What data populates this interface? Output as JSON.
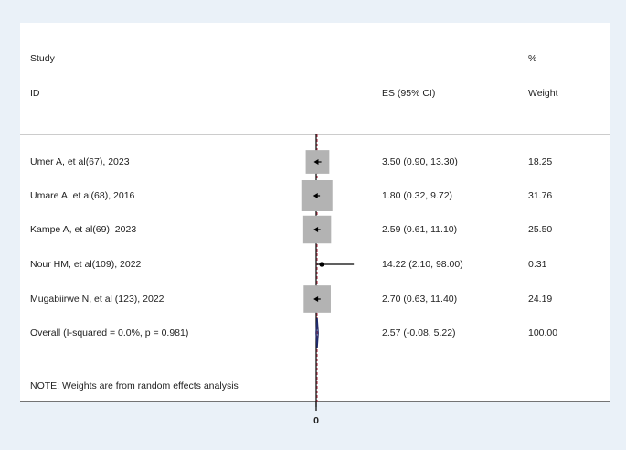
{
  "header": {
    "col1_top": "Study",
    "col1_bottom": "ID",
    "col2": "ES (95% CI)",
    "col3_top": "%",
    "col3_bottom": "Weight"
  },
  "rows": [
    {
      "study": "Umer A, et al(67), 2023",
      "ci_text": "3.50 (0.90, 13.30)",
      "weight": "18.25"
    },
    {
      "study": "Umare A, et al(68),  2016",
      "ci_text": "1.80 (0.32, 9.72)",
      "weight": "31.76"
    },
    {
      "study": "Kampe A, et al(69), 2023",
      "ci_text": "2.59 (0.61, 11.10)",
      "weight": "25.50"
    },
    {
      "study": "Nour HM, et al(109), 2022",
      "ci_text": "14.22 (2.10, 98.00)",
      "weight": "0.31"
    },
    {
      "study": "Mugabiirwe N, et al (123), 2022",
      "ci_text": "2.70 (0.63, 11.40)",
      "weight": "24.19"
    }
  ],
  "overall": {
    "label": "Overall  (I-squared = 0.0%, p = 0.981)",
    "ci_text": "2.57 (-0.08, 5.22)",
    "weight": "100.00"
  },
  "note": "NOTE: Weights are from random effects analysis",
  "axis": {
    "tick_label": "0"
  },
  "colors": {
    "background": "#eaf1f8",
    "box": "#b3b3b3",
    "diamond": "#1f2a6b",
    "null_line": "#000000",
    "overall_line": "#b0344a"
  },
  "chart_data": {
    "type": "forest",
    "studies": [
      {
        "name": "Umer A, et al(67), 2023",
        "es": 3.5,
        "lo": 0.9,
        "hi": 13.3,
        "weight": 18.25
      },
      {
        "name": "Umare A, et al(68),  2016",
        "es": 1.8,
        "lo": 0.32,
        "hi": 9.72,
        "weight": 31.76
      },
      {
        "name": "Kampe A, et al(69), 2023",
        "es": 2.59,
        "lo": 0.61,
        "hi": 11.1,
        "weight": 25.5
      },
      {
        "name": "Nour HM, et al(109), 2022",
        "es": 14.22,
        "lo": 2.1,
        "hi": 98.0,
        "weight": 0.31
      },
      {
        "name": "Mugabiirwe N, et al (123), 2022",
        "es": 2.7,
        "lo": 0.63,
        "hi": 11.4,
        "weight": 24.19
      }
    ],
    "overall": {
      "es": 2.57,
      "lo": -0.08,
      "hi": 5.22
    },
    "null_value": 0,
    "x_ticks": [
      0
    ]
  }
}
